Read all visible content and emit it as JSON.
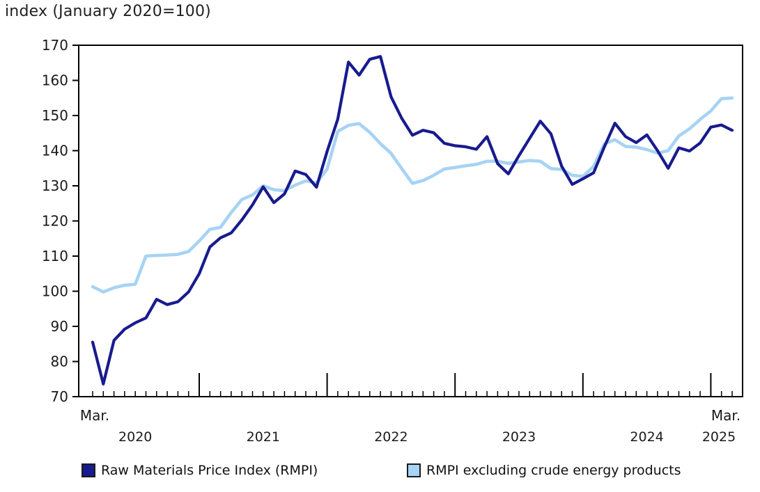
{
  "title": "index (January 2020=100)",
  "colors": {
    "rmpi": "#181b8e",
    "rmpi_ex_energy": "#a7d3f4",
    "axis": "#000000",
    "text": "#1a1a1a"
  },
  "legend": {
    "items": [
      {
        "label": "Raw Materials Price Index (RMPI)",
        "color": "#181b8e"
      },
      {
        "label": "RMPI excluding crude energy products",
        "color": "#a7d3f4"
      }
    ]
  },
  "chart_data": {
    "type": "line",
    "title": "index (January 2020=100)",
    "x_start": "2020-03",
    "x_end": "2025-03",
    "x_unit": "month",
    "months_count": 61,
    "ylim": [
      70,
      170
    ],
    "y_ticks": [
      70,
      80,
      90,
      100,
      110,
      120,
      130,
      140,
      150,
      160,
      170
    ],
    "x_first_label": "Mar.",
    "x_last_label": "Mar.",
    "year_labels": [
      "2020",
      "2021",
      "2022",
      "2023",
      "2024",
      "2025"
    ],
    "grid": false,
    "legend_position": "bottom",
    "series": [
      {
        "name": "Raw Materials Price Index (RMPI)",
        "color": "#181b8e",
        "values": [
          85.5,
          73.6,
          86.0,
          89.2,
          91.0,
          92.4,
          97.7,
          96.2,
          97.0,
          99.8,
          105.0,
          112.6,
          115.2,
          116.6,
          120.3,
          124.6,
          129.7,
          125.2,
          127.7,
          134.2,
          133.2,
          129.6,
          139.8,
          149.0,
          165.2,
          161.5,
          166.0,
          166.8,
          155.3,
          149.2,
          144.4,
          145.8,
          145.1,
          142.1,
          141.4,
          141.1,
          140.4,
          144.0,
          136.3,
          133.4,
          138.6,
          143.5,
          148.4,
          144.8,
          135.6,
          130.4,
          132.0,
          133.7,
          141.0,
          147.8,
          144.0,
          142.3,
          144.5,
          140.0,
          135.0,
          140.8,
          139.9,
          142.2,
          146.7,
          147.3,
          145.8
        ]
      },
      {
        "name": "RMPI excluding crude energy products",
        "color": "#a7d3f4",
        "values": [
          101.3,
          99.8,
          101.0,
          101.7,
          102.0,
          110.0,
          110.2,
          110.3,
          110.5,
          111.3,
          114.3,
          117.6,
          118.2,
          122.4,
          126.1,
          127.4,
          130.0,
          128.9,
          128.6,
          130.2,
          131.4,
          130.8,
          134.8,
          145.5,
          147.2,
          147.7,
          145.2,
          142.0,
          139.2,
          134.9,
          130.7,
          131.5,
          133.0,
          134.8,
          135.2,
          135.7,
          136.1,
          137.0,
          137.0,
          136.4,
          136.8,
          137.2,
          137.0,
          134.9,
          134.7,
          133.0,
          132.7,
          135.5,
          141.9,
          143.1,
          141.2,
          141.0,
          140.3,
          139.3,
          140.0,
          144.2,
          146.2,
          148.9,
          151.3,
          154.8,
          155.0
        ]
      }
    ]
  }
}
